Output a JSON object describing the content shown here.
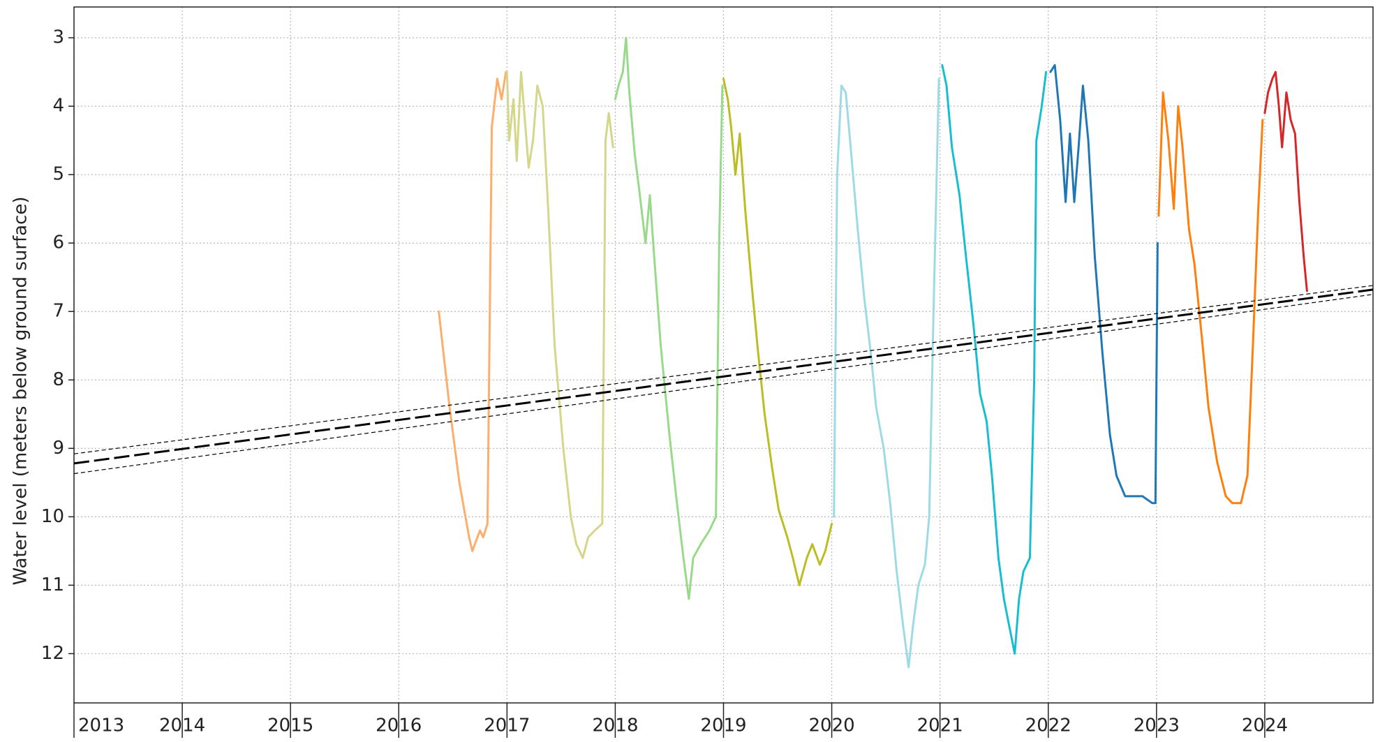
{
  "chart_data": {
    "type": "line",
    "y_label": "Water level (meters below ground surface)",
    "xlim": [
      2013,
      2025
    ],
    "xticks": [
      2013,
      2014,
      2015,
      2016,
      2017,
      2018,
      2019,
      2020,
      2021,
      2022,
      2023,
      2024
    ],
    "ylim": [
      2.55,
      12.72
    ],
    "y_inverted": true,
    "yticks": [
      3,
      4,
      5,
      6,
      7,
      8,
      9,
      10,
      11,
      12
    ],
    "grid": true,
    "series": [
      {
        "color": "#fdae6b",
        "width": 3,
        "x": [
          2016.37,
          2016.47,
          2016.56,
          2016.65,
          2016.68,
          2016.75,
          2016.78,
          2016.82,
          2016.86,
          2016.91,
          2016.95,
          2016.99
        ],
        "values": [
          7.0,
          8.4,
          9.5,
          10.3,
          10.5,
          10.2,
          10.3,
          10.1,
          4.3,
          3.6,
          3.9,
          3.5
        ]
      },
      {
        "color": "#d4d68a",
        "width": 3,
        "x": [
          2017.0,
          2017.02,
          2017.06,
          2017.09,
          2017.13,
          2017.17,
          2017.2,
          2017.24,
          2017.28,
          2017.33,
          2017.38,
          2017.44,
          2017.52,
          2017.59,
          2017.64,
          2017.7,
          2017.75,
          2017.81,
          2017.88,
          2017.91,
          2017.94,
          2017.98
        ],
        "values": [
          3.5,
          4.5,
          3.9,
          4.8,
          3.5,
          4.3,
          4.9,
          4.5,
          3.7,
          4.0,
          5.5,
          7.5,
          9.0,
          10.0,
          10.4,
          10.6,
          10.3,
          10.2,
          10.1,
          4.5,
          4.1,
          4.6
        ]
      },
      {
        "color": "#98d98a",
        "width": 3,
        "x": [
          2018.0,
          2018.03,
          2018.07,
          2018.1,
          2018.13,
          2018.18,
          2018.22,
          2018.28,
          2018.32,
          2018.36,
          2018.42,
          2018.5,
          2018.57,
          2018.63,
          2018.68,
          2018.72,
          2018.79,
          2018.87,
          2018.93,
          2018.96,
          2018.99
        ],
        "values": [
          3.9,
          3.7,
          3.5,
          3.0,
          3.8,
          4.7,
          5.2,
          6.0,
          5.3,
          6.2,
          7.5,
          8.8,
          9.8,
          10.6,
          11.2,
          10.6,
          10.4,
          10.2,
          10.0,
          6.0,
          3.7
        ]
      },
      {
        "color": "#bcbd22",
        "width": 3,
        "x": [
          2019.0,
          2019.04,
          2019.07,
          2019.11,
          2019.15,
          2019.2,
          2019.26,
          2019.32,
          2019.38,
          2019.45,
          2019.51,
          2019.59,
          2019.64,
          2019.7,
          2019.77,
          2019.82,
          2019.89,
          2019.94,
          2020.0
        ],
        "values": [
          3.6,
          3.9,
          4.3,
          5.0,
          4.4,
          5.5,
          6.6,
          7.6,
          8.5,
          9.3,
          9.9,
          10.3,
          10.6,
          11.0,
          10.6,
          10.4,
          10.7,
          10.5,
          10.1
        ]
      },
      {
        "color": "#9edae5",
        "width": 3,
        "x": [
          2020.02,
          2020.05,
          2020.09,
          2020.13,
          2020.18,
          2020.24,
          2020.3,
          2020.36,
          2020.41,
          2020.48,
          2020.54,
          2020.6,
          2020.66,
          2020.71,
          2020.75,
          2020.8,
          2020.86,
          2020.9,
          2020.94,
          2020.99
        ],
        "values": [
          10.0,
          5.0,
          3.7,
          3.8,
          4.7,
          5.8,
          6.8,
          7.6,
          8.4,
          9.0,
          9.8,
          10.8,
          11.6,
          12.2,
          11.6,
          11.0,
          10.7,
          10.0,
          7.0,
          3.6
        ]
      },
      {
        "color": "#17becf",
        "width": 3,
        "x": [
          2021.02,
          2021.06,
          2021.11,
          2021.18,
          2021.24,
          2021.31,
          2021.37,
          2021.43,
          2021.48,
          2021.54,
          2021.59,
          2021.64,
          2021.69,
          2021.73,
          2021.77,
          2021.83,
          2021.87,
          2021.89,
          2021.94,
          2021.98
        ],
        "values": [
          3.4,
          3.7,
          4.6,
          5.3,
          6.2,
          7.2,
          8.2,
          8.6,
          9.4,
          10.6,
          11.2,
          11.6,
          12.0,
          11.2,
          10.8,
          10.6,
          8.0,
          4.5,
          4.0,
          3.5
        ]
      },
      {
        "color": "#1f77b4",
        "width": 3,
        "x": [
          2022.02,
          2022.06,
          2022.11,
          2022.16,
          2022.2,
          2022.24,
          2022.28,
          2022.32,
          2022.37,
          2022.43,
          2022.5,
          2022.57,
          2022.63,
          2022.71,
          2022.79,
          2022.87,
          2022.96,
          2022.99,
          2023.01
        ],
        "values": [
          3.5,
          3.4,
          4.2,
          5.4,
          4.4,
          5.4,
          4.6,
          3.7,
          4.5,
          6.2,
          7.6,
          8.8,
          9.4,
          9.7,
          9.7,
          9.7,
          9.8,
          9.8,
          6.0
        ]
      },
      {
        "color": "#ff7f0e",
        "width": 3,
        "x": [
          2023.02,
          2023.06,
          2023.11,
          2023.16,
          2023.2,
          2023.24,
          2023.3,
          2023.35,
          2023.42,
          2023.48,
          2023.56,
          2023.64,
          2023.7,
          2023.78,
          2023.84,
          2023.89,
          2023.94,
          2023.98
        ],
        "values": [
          5.6,
          3.8,
          4.5,
          5.5,
          4.0,
          4.6,
          5.8,
          6.3,
          7.4,
          8.4,
          9.2,
          9.7,
          9.8,
          9.8,
          9.4,
          7.5,
          5.5,
          4.2
        ]
      },
      {
        "color": "#d62728",
        "width": 3,
        "x": [
          2024.0,
          2024.03,
          2024.07,
          2024.1,
          2024.13,
          2024.16,
          2024.2,
          2024.24,
          2024.28,
          2024.32,
          2024.36,
          2024.39
        ],
        "values": [
          4.1,
          3.8,
          3.6,
          3.5,
          4.0,
          4.6,
          3.8,
          4.2,
          4.4,
          5.4,
          6.2,
          6.7
        ]
      },
      {
        "color": "#000000",
        "width": 3,
        "dash": "long",
        "x": [
          2013,
          2025
        ],
        "values": [
          9.22,
          6.68
        ]
      },
      {
        "color": "#000000",
        "width": 1.2,
        "dash": "short",
        "x": [
          2013,
          2025
        ],
        "values": [
          9.08,
          6.62
        ]
      },
      {
        "color": "#000000",
        "width": 1.2,
        "dash": "short",
        "x": [
          2013,
          2025
        ],
        "values": [
          9.37,
          6.75
        ]
      }
    ]
  }
}
